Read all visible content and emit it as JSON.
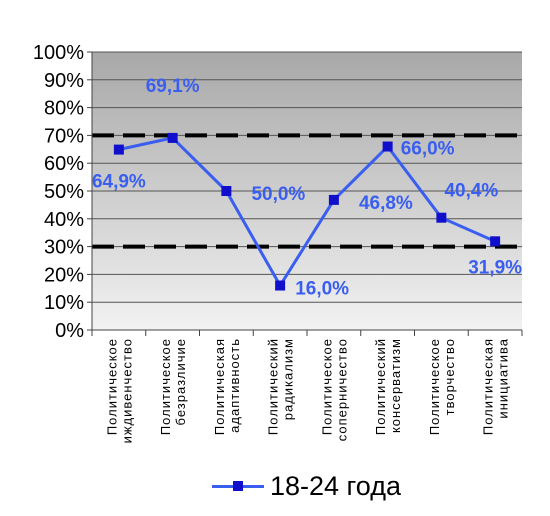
{
  "chart_data": {
    "type": "line",
    "categories": [
      [
        "Политическое",
        "иждивенчество"
      ],
      [
        "Политическое",
        "безразличие"
      ],
      [
        "Политическая",
        "адаптивность"
      ],
      [
        "Политический",
        "радикализм"
      ],
      [
        "Политическое",
        "соперничество"
      ],
      [
        "Политический",
        "консерватизм"
      ],
      [
        "Политическое",
        "творчество"
      ],
      [
        "Политическая",
        "инициатива"
      ]
    ],
    "series": [
      {
        "name": "18-24 года",
        "values": [
          64.9,
          69.1,
          50.0,
          16.0,
          46.8,
          66.0,
          40.4,
          31.9
        ]
      }
    ],
    "data_labels": [
      "64,9%",
      "69,1%",
      "50,0%",
      "16,0%",
      "46,8%",
      "66,0%",
      "40,4%",
      "31,9%"
    ],
    "reference_lines": [
      70,
      30
    ],
    "ylim": [
      0,
      100
    ],
    "yticks": [
      "0%",
      "10%",
      "20%",
      "30%",
      "40%",
      "50%",
      "60%",
      "70%",
      "80%",
      "90%",
      "100%"
    ],
    "grid": true,
    "legend_position": "bottom",
    "colors": {
      "line": "#3a5ef0",
      "marker": "#1010cc",
      "label": "#3a5ef0",
      "plot_top": "#a8a8a8",
      "plot_bottom": "#f2f2f2",
      "reference": "#000000"
    }
  },
  "legend": {
    "label": "18-24 года"
  }
}
